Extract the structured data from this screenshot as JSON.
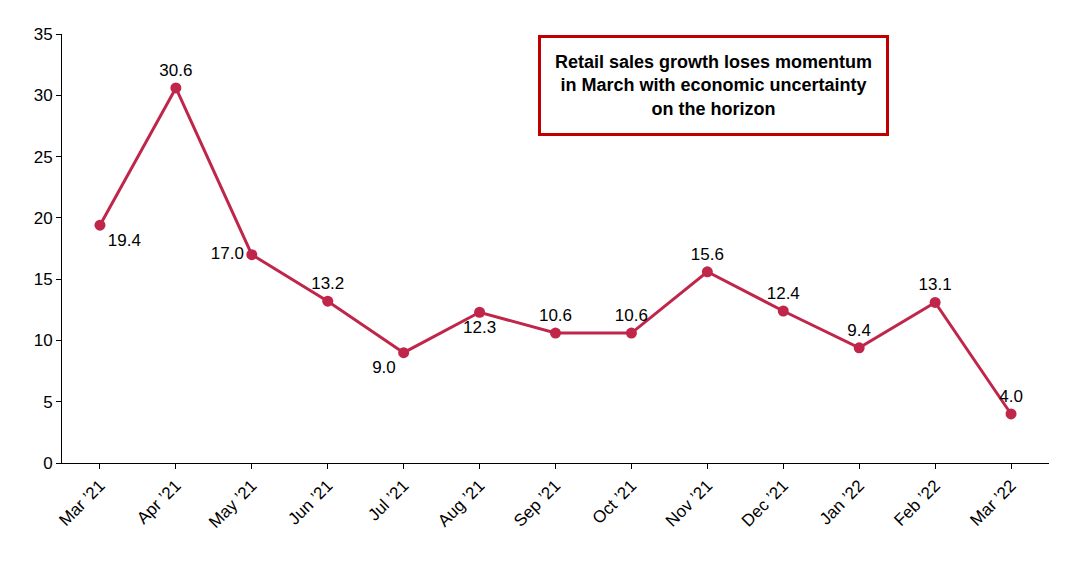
{
  "chart_data": {
    "type": "line",
    "categories": [
      "Mar ’21",
      "Apr ’21",
      "May ’21",
      "Jun ’21",
      "Jul ’21",
      "Aug ’21",
      "Sep ’21",
      "Oct ’21",
      "Nov ’21",
      "Dec ’21",
      "Jan ’22",
      "Feb ’22",
      "Mar ’22"
    ],
    "values": [
      19.4,
      30.6,
      17.0,
      13.2,
      9.0,
      12.3,
      10.6,
      10.6,
      15.6,
      12.4,
      9.4,
      13.1,
      4.0
    ],
    "value_labels": [
      "19.4",
      "30.6",
      "17.0",
      "13.2",
      "9.0",
      "12.3",
      "10.6",
      "10.6",
      "15.6",
      "12.4",
      "9.4",
      "13.1",
      "4.0"
    ],
    "color": "#c0264a",
    "marker": "circle",
    "data_labels": true,
    "grid": false,
    "ylim": [
      0,
      35
    ],
    "yticks": [
      0,
      5,
      10,
      15,
      20,
      25,
      30,
      35
    ],
    "annotations": [
      {
        "text": "Retail sales growth loses momentum in March with economic uncertainty on the horizon"
      }
    ]
  }
}
